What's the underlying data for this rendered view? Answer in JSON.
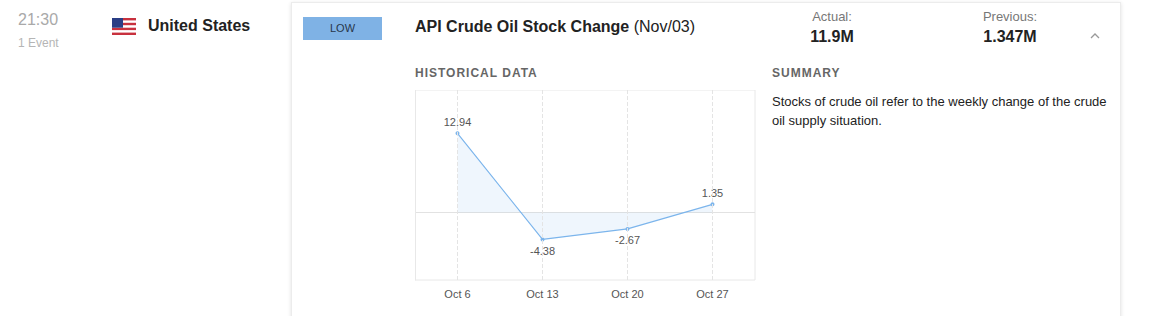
{
  "time": "21:30",
  "events": "1 Event",
  "country": "United States",
  "impact": "LOW",
  "event": {
    "name": "API Crude Oil Stock Change",
    "period": "(Nov/03)"
  },
  "actual": {
    "label": "Actual:",
    "value": "11.9M"
  },
  "previous": {
    "label": "Previous:",
    "value": "1.347M"
  },
  "historical_heading": "HISTORICAL DATA",
  "summary": {
    "heading": "SUMMARY",
    "text": "Stocks of crude oil refer to the weekly change of the crude oil supply situation."
  },
  "chart_data": {
    "type": "line",
    "categories": [
      "Oct 6",
      "Oct 13",
      "Oct 20",
      "Oct 27"
    ],
    "values": [
      12.94,
      -4.38,
      -2.67,
      1.35
    ],
    "color": "#7cb5ec",
    "ylim": [
      -11,
      20
    ],
    "yticks": [
      0
    ],
    "grid": true,
    "data_labels": true,
    "tick_labels": "x"
  }
}
